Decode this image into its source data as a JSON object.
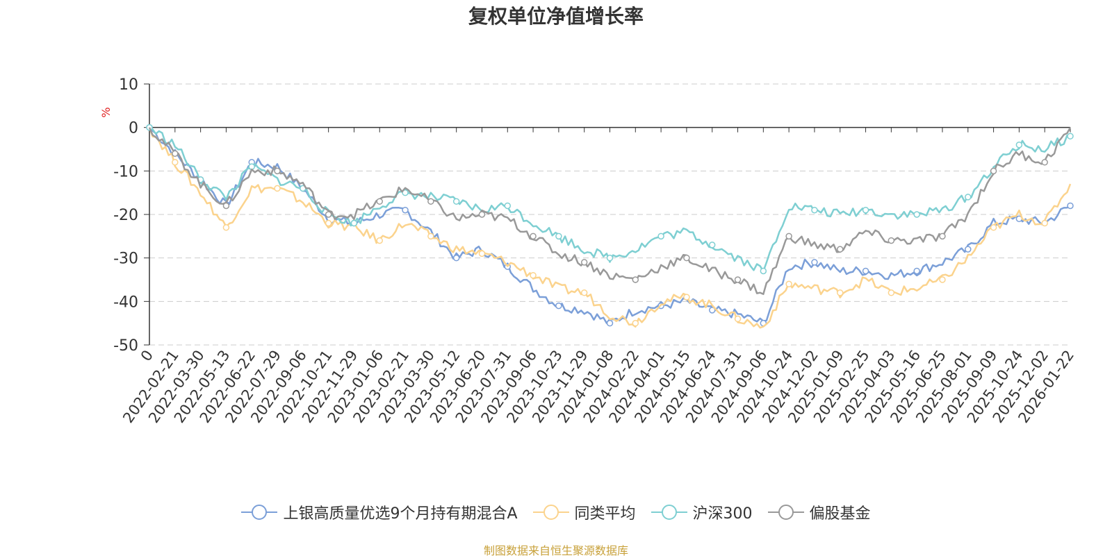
{
  "title": "复权单位净值增长率",
  "source": "制图数据来自恒生聚源数据库",
  "chart_data": {
    "type": "line",
    "title": "复权单位净值增长率",
    "ylabel": "%",
    "ylim": [
      -50,
      10
    ],
    "yticks": [
      10,
      0,
      -10,
      -20,
      -30,
      -40,
      -50
    ],
    "categories": [
      "0",
      "2022-02-21",
      "2022-03-30",
      "2022-05-13",
      "2022-06-22",
      "2022-07-29",
      "2022-09-06",
      "2022-10-21",
      "2022-11-29",
      "2023-01-06",
      "2023-02-21",
      "2023-03-30",
      "2023-05-12",
      "2023-06-20",
      "2023-07-31",
      "2023-09-06",
      "2023-10-23",
      "2023-11-29",
      "2024-01-08",
      "2024-02-22",
      "2024-04-01",
      "2024-05-15",
      "2024-06-24",
      "2024-07-31",
      "2024-09-06",
      "2024-10-24",
      "2024-12-02",
      "2025-01-09",
      "2025-02-25",
      "2025-04-03",
      "2025-05-16",
      "2025-06-25",
      "2025-08-01",
      "2025-09-09",
      "2025-10-24",
      "2025-12-02",
      "2026-01-22"
    ],
    "series": [
      {
        "name": "上银高质量优选9个月持有期混合A",
        "color": "#7b9fd8",
        "values": [
          0,
          -6,
          -12,
          -18,
          -8,
          -9,
          -14,
          -21,
          -22,
          -20,
          -19,
          -24,
          -30,
          -28,
          -32,
          -37,
          -41,
          -42,
          -45,
          -42,
          -41,
          -40,
          -42,
          -43,
          -45,
          -32,
          -31,
          -33,
          -33,
          -34,
          -33,
          -31,
          -28,
          -22,
          -21,
          -22,
          -18
        ]
      },
      {
        "name": "同类平均",
        "color": "#fbd38d",
        "values": [
          0,
          -8,
          -15,
          -23,
          -14,
          -14,
          -17,
          -22,
          -23,
          -26,
          -22,
          -25,
          -28,
          -29,
          -31,
          -34,
          -37,
          -38,
          -43,
          -45,
          -40,
          -39,
          -41,
          -44,
          -46,
          -36,
          -37,
          -38,
          -35,
          -38,
          -37,
          -35,
          -30,
          -23,
          -20,
          -22,
          -13
        ]
      },
      {
        "name": "沪深300",
        "color": "#7ecfd2",
        "values": [
          0,
          -4,
          -12,
          -16,
          -9,
          -12,
          -14,
          -20,
          -22,
          -18,
          -15,
          -16,
          -17,
          -19,
          -18,
          -22,
          -25,
          -28,
          -30,
          -28,
          -25,
          -24,
          -27,
          -30,
          -33,
          -18,
          -19,
          -20,
          -19,
          -20,
          -20,
          -19,
          -16,
          -9,
          -4,
          -5,
          -2
        ]
      },
      {
        "name": "偏股基金",
        "color": "#999999",
        "values": [
          0,
          -6,
          -13,
          -18,
          -10,
          -10,
          -13,
          -20,
          -20,
          -17,
          -14,
          -17,
          -21,
          -20,
          -21,
          -25,
          -29,
          -31,
          -34,
          -35,
          -32,
          -30,
          -33,
          -35,
          -38,
          -25,
          -27,
          -28,
          -24,
          -26,
          -26,
          -25,
          -20,
          -10,
          -6,
          -8,
          0
        ]
      }
    ]
  }
}
